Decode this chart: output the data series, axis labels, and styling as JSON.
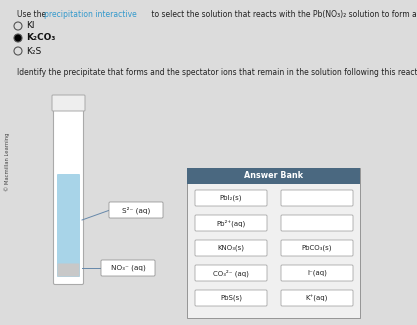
{
  "bg_color": "#dcdcdc",
  "title_fs": 5.5,
  "radio_fs": 6.5,
  "subtitle_fs": 5.5,
  "side_text": "© Macmillan Learning",
  "radio_options": [
    "KI",
    "K₂CO₃",
    "K₂S"
  ],
  "radio_selected": 1,
  "subtitle": "Identify the precipitate that forms and the spectator ions that remain in the solution following this reaction.",
  "liquid_color": "#a8d4e8",
  "precipitate_color": "#c8c8c8",
  "label_s2": "S²⁻ (aq)",
  "label_no3": "NO₃⁻ (aq)",
  "answer_bank_header": "Answer Bank",
  "answer_bank_header_color": "#4a6880",
  "answer_items_col1": [
    "PbI₂(s)",
    "Pb²⁺(aq)",
    "KNO₃(s)",
    "CO₃²⁻ (aq)",
    "PbS(s)"
  ],
  "answer_items_col2": [
    "",
    "",
    "PbCO₃(s)",
    "I⁻(aq)",
    "K⁺(aq)"
  ],
  "answer_items_col2_empty": [
    0,
    1
  ],
  "arrow_color": "#6688aa"
}
